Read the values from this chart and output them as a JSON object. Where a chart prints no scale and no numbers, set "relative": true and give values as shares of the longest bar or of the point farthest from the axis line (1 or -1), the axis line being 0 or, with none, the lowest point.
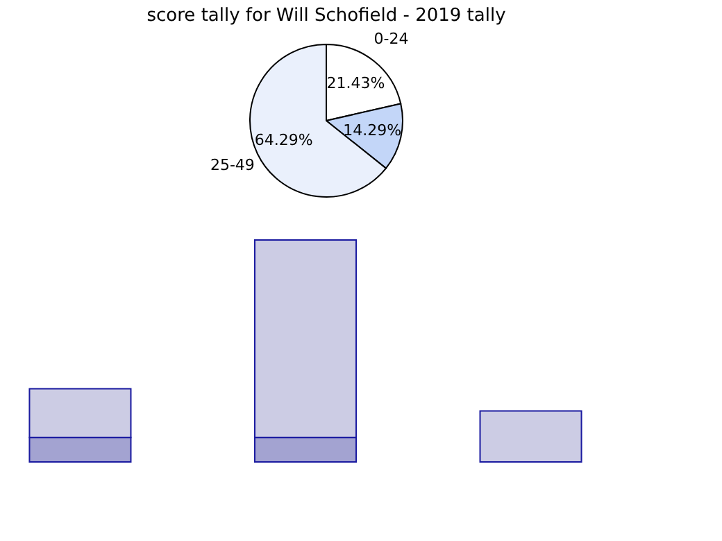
{
  "chart_data": [
    {
      "type": "pie",
      "title": "score tally for Will Schofield - 2019 tally",
      "categories": [
        "0-24",
        null,
        "25-49"
      ],
      "values": [
        21.43,
        14.29,
        64.29
      ],
      "colors": [
        "#ffffff",
        "#c3d6f8",
        "#eaf0fc"
      ],
      "value_labels": [
        "21.43%",
        "14.29%",
        "64.29%"
      ]
    },
    {
      "type": "bar",
      "relative": true,
      "stacked": true,
      "categories": [
        null,
        null,
        null
      ],
      "series": [
        {
          "color": "#a3a3d1",
          "values": [
            0.11,
            0.11,
            0
          ]
        },
        {
          "color": "#cccce4",
          "values": [
            0.22,
            0.89,
            0.23
          ]
        }
      ]
    }
  ]
}
